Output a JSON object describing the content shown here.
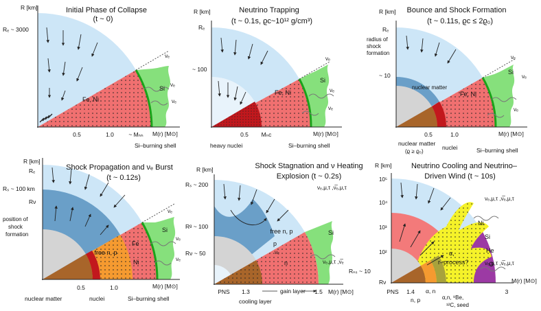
{
  "panels": [
    {
      "id": "p1",
      "title": [
        "Initial Phase of Collapse",
        "(t ~ 0)"
      ],
      "y_axis_label": "R [km]",
      "y_tick_labels": [
        "Rₑ ~ 3000"
      ],
      "x_axis_label": "M(r) [M⊙]",
      "x_ticks": [
        "0.5",
        "1.0",
        "~ Mₕₕ"
      ],
      "region_labels": [
        "Fe, Ni",
        "Si"
      ],
      "annotations": [
        "Si–burning shell"
      ],
      "neutrino_labels": [
        "νₑ",
        "νₑ",
        "νₑ"
      ]
    },
    {
      "id": "p2",
      "title": [
        "Neutrino Trapping",
        "(t ~ 0.1s, ϱc~10¹² g/cm³)"
      ],
      "y_axis_label": "R [km]",
      "y_tick_labels": [
        "Rₑ",
        "~ 100"
      ],
      "x_axis_label": "M(r) [M⊙]",
      "x_ticks": [
        "0.5",
        "Mₕc"
      ],
      "region_labels": [
        "Fe, Ni",
        "Si"
      ],
      "annotations": [
        "heavy nuclei",
        "Si–burning shell"
      ],
      "neutrino_labels": [
        "νₑ",
        "νₑ",
        "νₑ"
      ]
    },
    {
      "id": "p3",
      "title": [
        "Bounce and Shock Formation",
        "(t ~ 0.11s, ϱc ≤ 2ϱ₀)"
      ],
      "y_axis_label": "R [km]",
      "y_tick_labels": [
        "Rₑ",
        "~ 10"
      ],
      "x_axis_label": "M(r) [M⊙]",
      "x_ticks": [
        "0.5",
        "1.0"
      ],
      "region_labels": [
        "Fe, Ni",
        "Si"
      ],
      "annotations": [
        "radius of",
        "shock",
        "formation",
        "nuclear matter",
        "(ϱ ≥ ϱ₀)",
        "nuclei",
        "Si–burning shell"
      ],
      "neutrino_labels": [
        "νₑ",
        "νₑ",
        "νₑ"
      ]
    },
    {
      "id": "p4",
      "title": [
        "Shock Propagation and νₑ Burst",
        "(t ~ 0.12s)"
      ],
      "y_axis_label": "R [km]",
      "y_tick_labels": [
        "Rₑ",
        "Rₛ ~ 100 km",
        "Rν"
      ],
      "x_axis_label": "M(r) [M⊙]",
      "x_ticks": [
        "0.5",
        "1.0"
      ],
      "region_labels": [
        "free n, p",
        "Fe",
        "Ni",
        "Si"
      ],
      "annotations": [
        "position of",
        "shock",
        "formation",
        "nuclear matter",
        "nuclei",
        "Si–burning shell"
      ],
      "neutrino_labels": [
        "νₑ",
        "νₑ",
        "νₑ"
      ]
    },
    {
      "id": "p5",
      "title": [
        "Shock Stagnation and ν Heating",
        "Explosion  (t ~ 0.2s)"
      ],
      "y_axis_label": "R [km]",
      "y_tick_labels": [
        "Rₛ ~ 200",
        "Rᵍ ~ 100",
        "Rν ~ 50"
      ],
      "x_axis_label": "M(r) [M⊙]",
      "x_ticks": [
        "PNS",
        "1.3",
        "1.5"
      ],
      "region_labels": [
        "free n, p",
        "p",
        "n",
        "Si"
      ],
      "annotations": [
        "cooling layer",
        "gain layer"
      ],
      "neutrino_labels": [
        "νₑ,μ,τ ,ν̅ₑ,μ,τ",
        "νₑ,μ,τ ,ν̅ₑ",
        "νₑ"
      ]
    },
    {
      "id": "p6",
      "title": [
        "Neutrino Cooling and Neutrino–",
        "Driven Wind  (t ~ 10s)"
      ],
      "y_axis_label": "R [km]",
      "y_tick_labels": [
        "10⁵",
        "10⁴",
        "10³",
        "10²",
        "Rₙₛ ~ 10",
        "Rν"
      ],
      "x_axis_label": "M(r) [M⊙]",
      "x_ticks": [
        "PNS",
        "1.4",
        "3"
      ],
      "region_labels": [
        "Ni",
        "Si",
        "He",
        "O",
        "α,",
        "r–process?"
      ],
      "annotations": [
        "n, p",
        "α, n",
        "α,n, ⁹Be,",
        "¹²C, seed"
      ],
      "neutrino_labels": [
        "νₑ,μ,τ ,ν̅ₑ,μ,τ",
        "νₑ,μ,τ ,ν̅ₑ,μ,τ"
      ]
    }
  ],
  "colors": {
    "infall_blue": "#cde6f7",
    "deep_blue": "#6a9fc8",
    "fe_red": "#f07070",
    "si_green": "#86e07c",
    "si_line": "#1aa31a",
    "nuclei_red": "#c2181d",
    "nuclear_brown": "#a8652a",
    "free_orange": "#f59a30",
    "gray": "#d4d4d4",
    "yellow": "#f5f229",
    "purple": "#9c3aa4",
    "olive": "#a8a23c",
    "wind_pink": "#f37a7a"
  }
}
